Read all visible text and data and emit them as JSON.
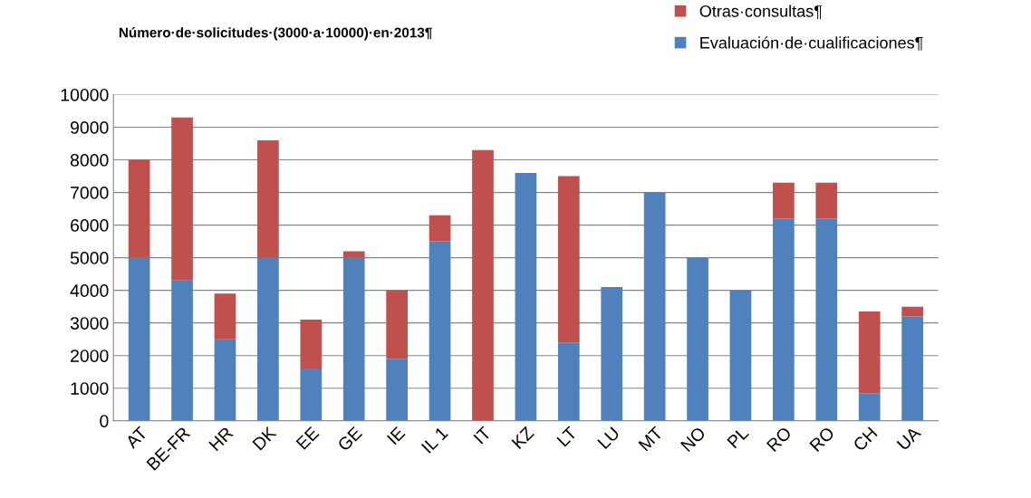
{
  "chart_data": {
    "type": "bar",
    "title": "Número·de·solicitudes·(3000·a·10000)·en·2013¶",
    "categories": [
      "AT",
      "BE-FR",
      "HR",
      "DK",
      "EE",
      "GE",
      "IE",
      "IL 1",
      "IT",
      "KZ",
      "LT",
      "LU",
      "MT",
      "NO",
      "PL",
      "RO",
      "RO",
      "CH",
      "UA"
    ],
    "stacked": true,
    "series": [
      {
        "name": "Evaluación·de·cualificaciones¶",
        "color": "#4f81bd",
        "values": [
          5000,
          4300,
          2500,
          5000,
          1600,
          5000,
          1900,
          5500,
          0,
          7600,
          2400,
          4100,
          7000,
          5000,
          4000,
          6200,
          6200,
          850,
          3200
        ]
      },
      {
        "name": "Otras·consultas¶",
        "color": "#c0504d",
        "values": [
          3000,
          5000,
          1400,
          3600,
          1500,
          200,
          2100,
          800,
          8300,
          0,
          5100,
          0,
          0,
          0,
          0,
          1100,
          1100,
          2500,
          300
        ]
      }
    ],
    "ylim": [
      0,
      10000
    ],
    "yticks": [
      0,
      1000,
      2000,
      3000,
      4000,
      5000,
      6000,
      7000,
      8000,
      9000,
      10000
    ],
    "grid": "y",
    "legend": "top right"
  }
}
